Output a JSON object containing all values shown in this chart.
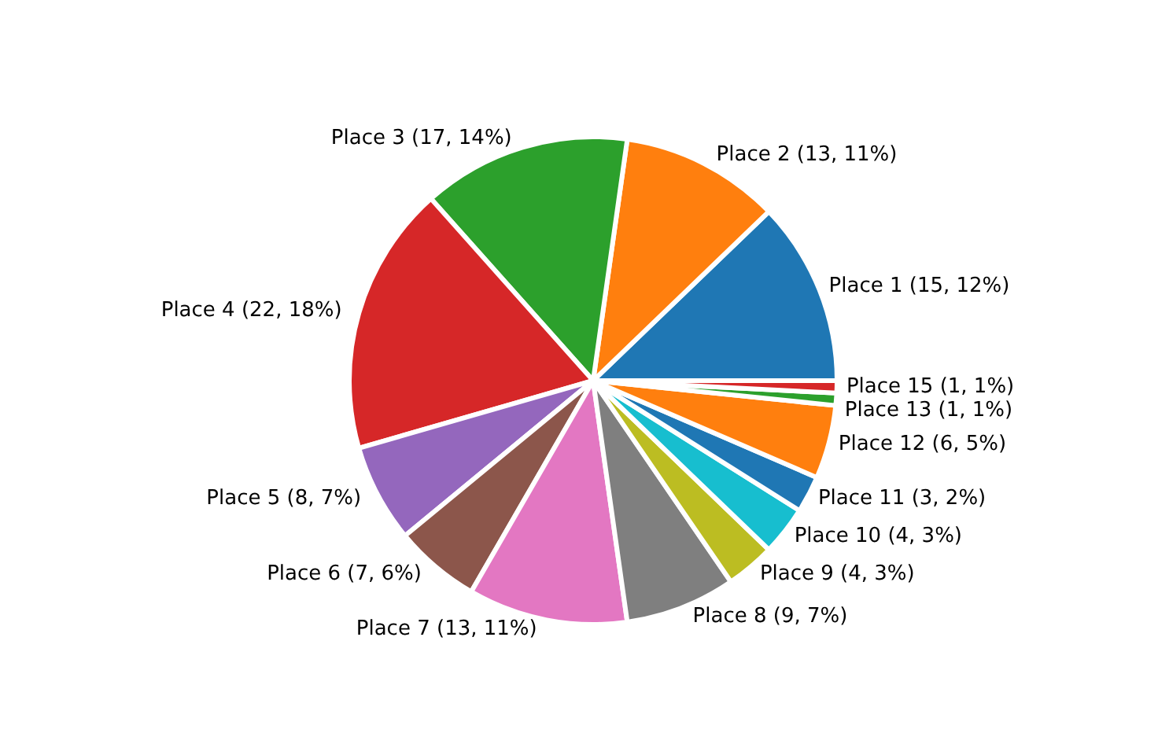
{
  "chart_data": {
    "type": "pie",
    "categories": [
      "Place 1",
      "Place 2",
      "Place 3",
      "Place 4",
      "Place 5",
      "Place 6",
      "Place 7",
      "Place 8",
      "Place 9",
      "Place 10",
      "Place 11",
      "Place 12",
      "Place 13",
      "Place 15"
    ],
    "values": [
      15,
      13,
      17,
      22,
      8,
      7,
      13,
      9,
      4,
      4,
      3,
      6,
      1,
      1
    ],
    "value_labels": [
      "(15, 12%)",
      "(13, 11%)",
      "(17, 14%)",
      "(22, 18%)",
      "(8, 7%)",
      "(7, 6%)",
      "(13, 11%)",
      "(9, 7%)",
      "(4, 3%)",
      "(4, 3%)",
      "(3, 2%)",
      "(6, 5%)",
      "(1, 1%)",
      "(1, 1%)"
    ],
    "colors": [
      "#1f77b4",
      "#ff7f0e",
      "#2ca02c",
      "#d62728",
      "#9467bd",
      "#8c564b",
      "#e377c2",
      "#7f7f7f",
      "#bcbd22",
      "#17becf",
      "#1f77b4",
      "#ff7f0e",
      "#2ca02c",
      "#d62728"
    ],
    "legend": false
  }
}
